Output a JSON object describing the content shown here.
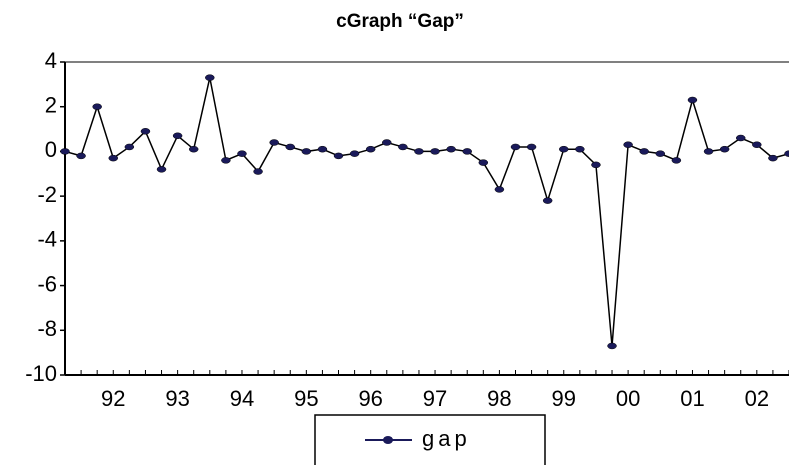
{
  "chart_data": {
    "type": "line",
    "title": "cGraph “Gap”",
    "categories": [
      null,
      null,
      null,
      "92",
      null,
      null,
      null,
      "93",
      null,
      null,
      null,
      "94",
      null,
      null,
      null,
      "95",
      null,
      null,
      null,
      "96",
      null,
      null,
      null,
      "97",
      null,
      null,
      null,
      "98",
      null,
      null,
      null,
      "99",
      null,
      null,
      null,
      "00",
      null,
      null,
      null,
      "01",
      null,
      null,
      null,
      "02",
      null,
      null
    ],
    "series": [
      {
        "name": "gap",
        "color": "#1a1a5a",
        "values": [
          0.0,
          -0.2,
          2.0,
          -0.3,
          0.2,
          0.9,
          -0.8,
          0.7,
          0.1,
          3.3,
          -0.4,
          -0.1,
          -0.9,
          0.4,
          0.2,
          0.0,
          0.1,
          -0.2,
          -0.1,
          0.1,
          0.4,
          0.2,
          0.0,
          0.0,
          0.1,
          0.0,
          -0.5,
          -1.7,
          0.2,
          0.2,
          -2.2,
          0.1,
          0.1,
          -0.6,
          -8.7,
          0.3,
          0.0,
          -0.1,
          -0.4,
          2.3,
          0.0,
          0.1,
          0.6,
          0.3,
          -0.3,
          -0.1
        ]
      }
    ],
    "ylim": [
      -10,
      4
    ],
    "yticks": [
      -10,
      -8,
      -6,
      -4,
      -2,
      0,
      2,
      4
    ],
    "legend": "bottom"
  }
}
